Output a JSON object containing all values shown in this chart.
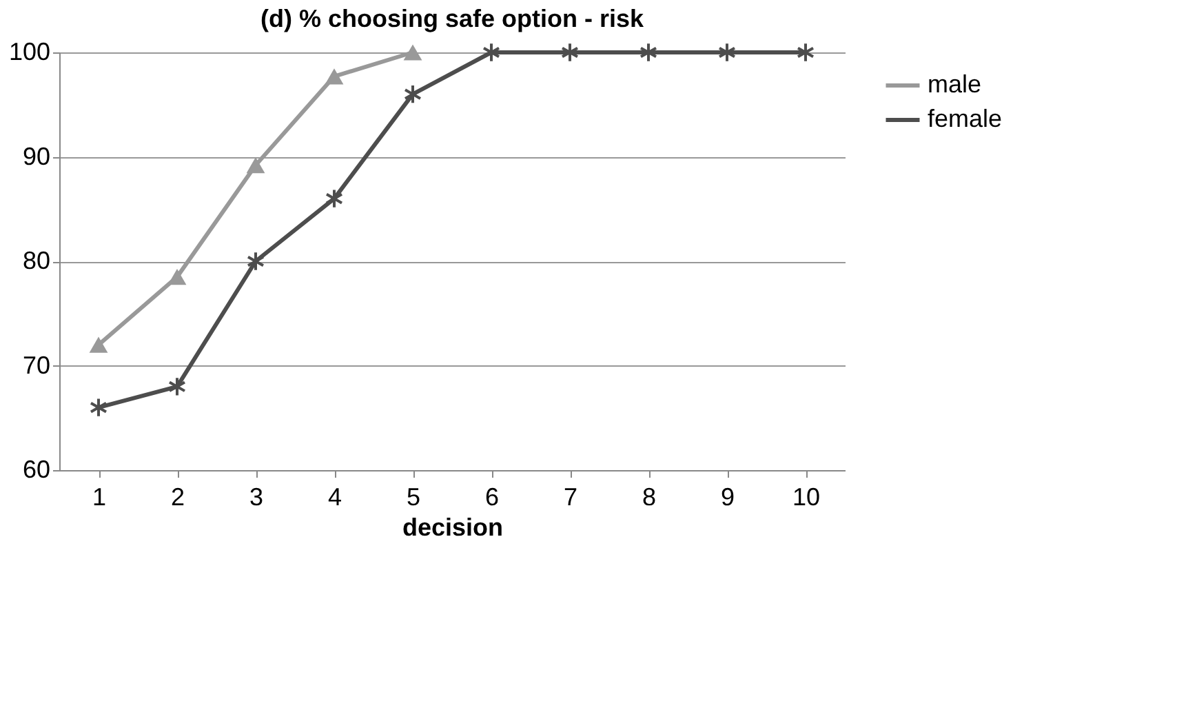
{
  "chart_data": {
    "type": "line",
    "title": "(d) % choosing safe option - risk",
    "xlabel": "decision",
    "categories": [
      "1",
      "2",
      "3",
      "4",
      "5",
      "6",
      "7",
      "8",
      "9",
      "10"
    ],
    "series": [
      {
        "name": "male",
        "color": "#999999",
        "marker": "triangle",
        "values": [
          72,
          78.5,
          89.2,
          97.7,
          100,
          null,
          null,
          null,
          null,
          null
        ]
      },
      {
        "name": "female",
        "color": "#4d4d4d",
        "marker": "cross",
        "values": [
          66,
          68,
          80,
          86,
          96,
          100,
          100,
          100,
          100,
          100
        ]
      }
    ],
    "ylim": [
      60,
      100
    ],
    "yticks": [
      60,
      70,
      80,
      90,
      100
    ],
    "grid": "y",
    "legend": "right"
  }
}
